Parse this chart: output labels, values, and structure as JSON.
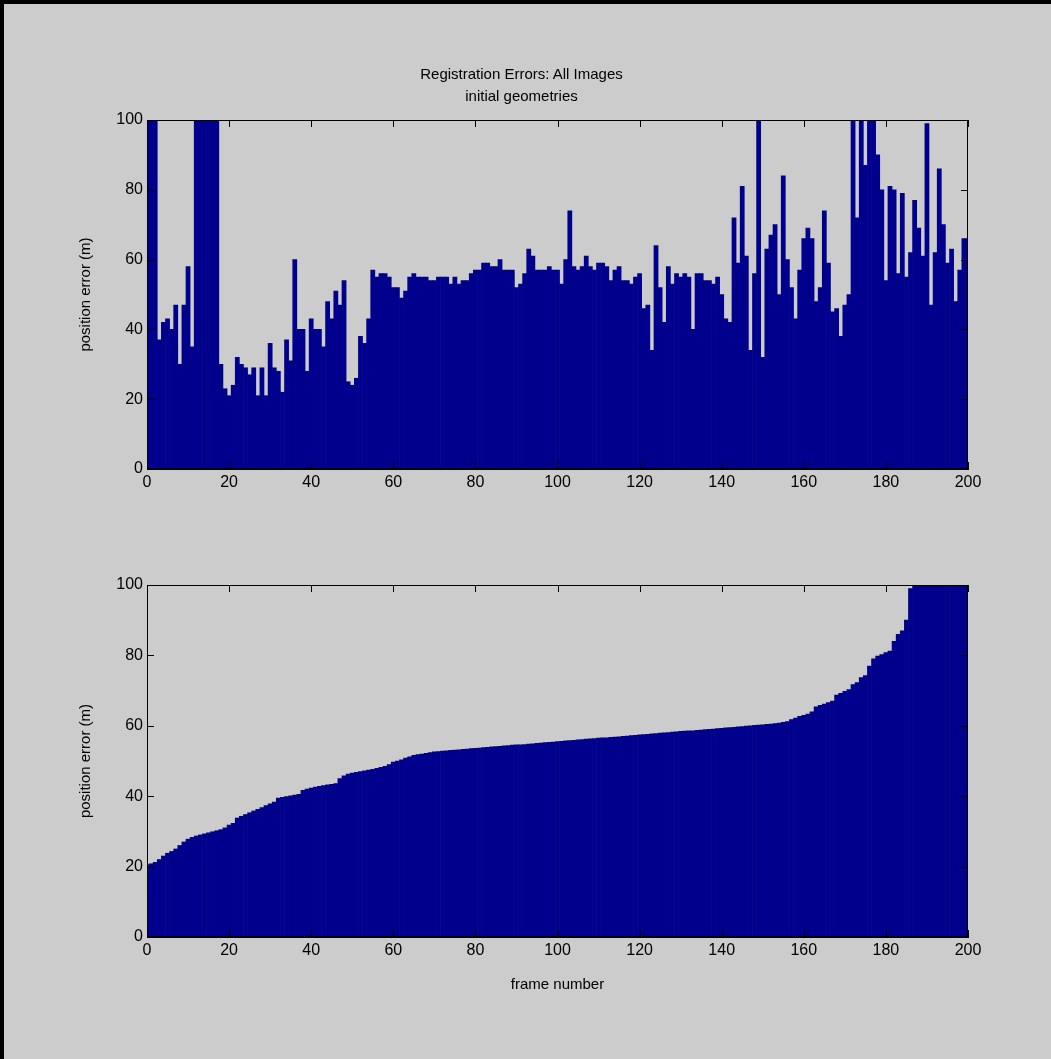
{
  "chart_data": [
    {
      "type": "bar",
      "title": "Registration Errors: All Images",
      "subtitle": "initial geometries",
      "ylabel": "position error (m)",
      "color": "#00008c",
      "x": [
        0,
        1,
        2,
        3,
        4,
        5,
        6,
        7,
        8,
        9,
        10,
        11,
        12,
        13,
        14,
        15,
        16,
        17,
        18,
        19,
        20,
        21,
        22,
        23,
        24,
        25,
        26,
        27,
        28,
        29,
        30,
        31,
        32,
        33,
        34,
        35,
        36,
        37,
        38,
        39,
        40,
        41,
        42,
        43,
        44,
        45,
        46,
        47,
        48,
        49,
        50,
        51,
        52,
        53,
        54,
        55,
        56,
        57,
        58,
        59,
        60,
        61,
        62,
        63,
        64,
        65,
        66,
        67,
        68,
        69,
        70,
        71,
        72,
        73,
        74,
        75,
        76,
        77,
        78,
        79,
        80,
        81,
        82,
        83,
        84,
        85,
        86,
        87,
        88,
        89,
        90,
        91,
        92,
        93,
        94,
        95,
        96,
        97,
        98,
        99,
        100,
        101,
        102,
        103,
        104,
        105,
        106,
        107,
        108,
        109,
        110,
        111,
        112,
        113,
        114,
        115,
        116,
        117,
        118,
        119,
        120,
        121,
        122,
        123,
        124,
        125,
        126,
        127,
        128,
        129,
        130,
        131,
        132,
        133,
        134,
        135,
        136,
        137,
        138,
        139,
        140,
        141,
        142,
        143,
        144,
        145,
        146,
        147,
        148,
        149,
        150,
        151,
        152,
        153,
        154,
        155,
        156,
        157,
        158,
        159,
        160,
        161,
        162,
        163,
        164,
        165,
        166,
        167,
        168,
        169,
        170,
        171,
        172,
        173,
        174,
        175,
        176,
        177,
        178,
        179,
        180,
        181,
        182,
        183,
        184,
        185,
        186,
        187,
        188,
        189,
        190,
        191,
        192,
        193,
        194,
        195,
        196,
        197,
        198,
        199,
        200
      ],
      "values": [
        100,
        100,
        100,
        37,
        42,
        43,
        40,
        47,
        30,
        47,
        58,
        35,
        100,
        100,
        100,
        100,
        100,
        100,
        30,
        23,
        21,
        24,
        32,
        30,
        29,
        27,
        29,
        21,
        29,
        21,
        36,
        29,
        28,
        22,
        37,
        31,
        60,
        40,
        40,
        28,
        43,
        40,
        40,
        35,
        48,
        43,
        51,
        47,
        54,
        25,
        24,
        26,
        38,
        36,
        43,
        57,
        55,
        56,
        56,
        55,
        52,
        52,
        49,
        51,
        55,
        56,
        55,
        55,
        55,
        54,
        54,
        55,
        55,
        55,
        53,
        55,
        53,
        54,
        54,
        56,
        57,
        57,
        59,
        59,
        58,
        58,
        60,
        57,
        57,
        57,
        52,
        53,
        56,
        63,
        61,
        57,
        57,
        57,
        58,
        57,
        57,
        53,
        60,
        74,
        58,
        57,
        58,
        61,
        58,
        57,
        59,
        59,
        58,
        54,
        57,
        58,
        54,
        54,
        53,
        55,
        56,
        46,
        47,
        34,
        64,
        52,
        42,
        58,
        53,
        56,
        55,
        56,
        55,
        40,
        56,
        56,
        54,
        54,
        53,
        55,
        50,
        43,
        42,
        72,
        59,
        81,
        61,
        34,
        56,
        100,
        32,
        63,
        67,
        70,
        50,
        84,
        60,
        52,
        43,
        57,
        66,
        69,
        66,
        48,
        52,
        74,
        59,
        45,
        46,
        38,
        47,
        50,
        100,
        72,
        100,
        87,
        100,
        100,
        90,
        80,
        54,
        81,
        80,
        56,
        79,
        55,
        62,
        77,
        69,
        61,
        99,
        47,
        62,
        86,
        70,
        59,
        63,
        48,
        57,
        66,
        66
      ],
      "xlim": [
        0,
        200
      ],
      "xticks": [
        0,
        20,
        40,
        60,
        80,
        100,
        120,
        140,
        160,
        180,
        200
      ],
      "ylim": [
        0,
        100
      ],
      "yticks": [
        0,
        20,
        40,
        60,
        80,
        100
      ]
    },
    {
      "type": "bar",
      "xlabel": "frame number",
      "ylabel": "position error (m)",
      "color": "#00008c",
      "x": [
        0,
        1,
        2,
        3,
        4,
        5,
        6,
        7,
        8,
        9,
        10,
        11,
        12,
        13,
        14,
        15,
        16,
        17,
        18,
        19,
        20,
        21,
        22,
        23,
        24,
        25,
        26,
        27,
        28,
        29,
        30,
        31,
        32,
        33,
        34,
        35,
        36,
        37,
        38,
        39,
        40,
        41,
        42,
        43,
        44,
        45,
        46,
        47,
        48,
        49,
        50,
        51,
        52,
        53,
        54,
        55,
        56,
        57,
        58,
        59,
        60,
        61,
        62,
        63,
        64,
        65,
        66,
        67,
        68,
        69,
        70,
        71,
        72,
        73,
        74,
        75,
        76,
        77,
        78,
        79,
        80,
        81,
        82,
        83,
        84,
        85,
        86,
        87,
        88,
        89,
        90,
        91,
        92,
        93,
        94,
        95,
        96,
        97,
        98,
        99,
        100,
        101,
        102,
        103,
        104,
        105,
        106,
        107,
        108,
        109,
        110,
        111,
        112,
        113,
        114,
        115,
        116,
        117,
        118,
        119,
        120,
        121,
        122,
        123,
        124,
        125,
        126,
        127,
        128,
        129,
        130,
        131,
        132,
        133,
        134,
        135,
        136,
        137,
        138,
        139,
        140,
        141,
        142,
        143,
        144,
        145,
        146,
        147,
        148,
        149,
        150,
        151,
        152,
        153,
        154,
        155,
        156,
        157,
        158,
        159,
        160,
        161,
        162,
        163,
        164,
        165,
        166,
        167,
        168,
        169,
        170,
        171,
        172,
        173,
        174,
        175,
        176,
        177,
        178,
        179,
        180,
        181,
        182,
        183,
        184,
        185,
        186,
        187,
        188,
        189,
        190,
        191,
        192,
        193,
        194,
        195,
        196,
        197,
        198,
        199,
        200
      ],
      "values": [
        20.5,
        20.8,
        21.2,
        22,
        23,
        23.8,
        24.3,
        25,
        26,
        27,
        27.8,
        28.3,
        28.7,
        29.0,
        29.3,
        29.6,
        29.9,
        30.2,
        30.5,
        31,
        31.8,
        32.3,
        33.8,
        34.3,
        34.8,
        35.3,
        35.8,
        36.3,
        36.8,
        37.3,
        37.8,
        38.3,
        39.5,
        39.7,
        39.9,
        40.1,
        40.3,
        40.5,
        41.7,
        42.0,
        42.3,
        42.6,
        42.8,
        43.0,
        43.2,
        43.4,
        43.6,
        45,
        45.8,
        46.3,
        46.6,
        46.8,
        47.0,
        47.2,
        47.4,
        47.6,
        47.9,
        48.2,
        48.5,
        49,
        49.7,
        50.0,
        50.3,
        50.8,
        51.2,
        51.6,
        51.8,
        52.0,
        52.2,
        52.4,
        52.6,
        52.7,
        52.8,
        52.9,
        53.0,
        53.1,
        53.2,
        53.3,
        53.4,
        53.5,
        53.6,
        53.7,
        53.8,
        53.9,
        54.0,
        54.1,
        54.2,
        54.3,
        54.4,
        54.5,
        54.6,
        54.6,
        54.7,
        54.8,
        54.9,
        55.0,
        55.1,
        55.2,
        55.3,
        55.4,
        55.5,
        55.6,
        55.7,
        55.8,
        55.9,
        56.0,
        56.1,
        56.2,
        56.3,
        56.4,
        56.5,
        56.6,
        56.6,
        56.7,
        56.8,
        56.9,
        57.0,
        57.1,
        57.2,
        57.3,
        57.4,
        57.5,
        57.6,
        57.7,
        57.8,
        57.9,
        58.0,
        58.1,
        58.2,
        58.3,
        58.4,
        58.5,
        58.6,
        58.6,
        58.7,
        58.8,
        58.9,
        59.0,
        59.1,
        59.2,
        59.3,
        59.4,
        59.5,
        59.6,
        59.7,
        59.8,
        59.9,
        60.0,
        60.1,
        60.2,
        60.3,
        60.4,
        60.5,
        60.6,
        60.8,
        61.0,
        61.2,
        61.8,
        62.2,
        62.7,
        63.0,
        63.3,
        64,
        65.4,
        65.8,
        66.2,
        66.6,
        67,
        68.7,
        69.2,
        69.8,
        70.3,
        71.7,
        72.3,
        73.7,
        74.3,
        77,
        79,
        79.8,
        80.2,
        80.8,
        81.2,
        84,
        86,
        87,
        90,
        99,
        100,
        100,
        100,
        100,
        100,
        100,
        100,
        100,
        100,
        100,
        100,
        100,
        100,
        100
      ],
      "xlim": [
        0,
        200
      ],
      "xticks": [
        0,
        20,
        40,
        60,
        80,
        100,
        120,
        140,
        160,
        180,
        200
      ],
      "ylim": [
        0,
        100
      ],
      "yticks": [
        0,
        20,
        40,
        60,
        80,
        100
      ]
    }
  ]
}
